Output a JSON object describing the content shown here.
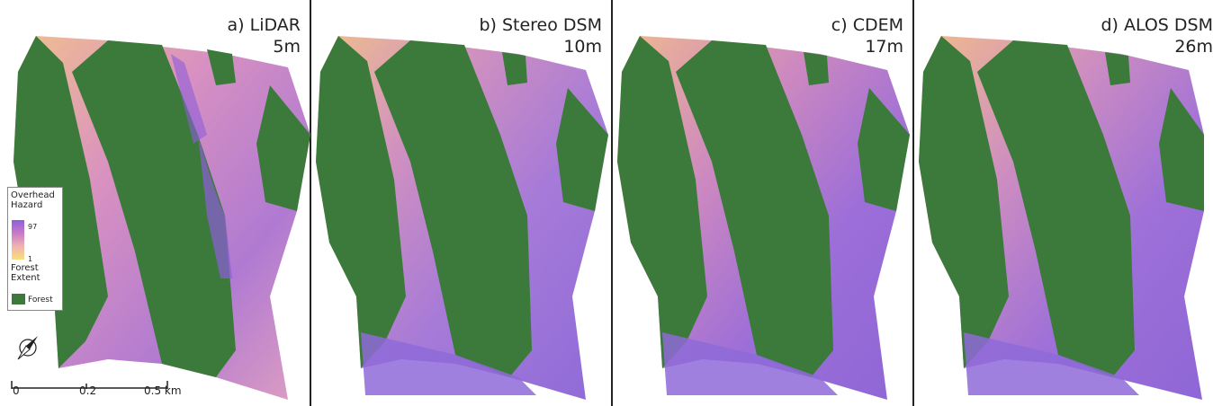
{
  "panels": [
    {
      "letter": "a) LiDAR",
      "resolution": "5m"
    },
    {
      "letter": "b) Stereo DSM",
      "resolution": "10m"
    },
    {
      "letter": "c) CDEM",
      "resolution": "17m"
    },
    {
      "letter": "d) ALOS DSM",
      "resolution": "26m"
    }
  ],
  "legend": {
    "hazard_title": "Overhead Hazard",
    "max": "97",
    "min": "1",
    "forest_title": "Forest Extent",
    "forest_item": "Forest"
  },
  "scale": {
    "ticks": [
      "0",
      "0.2",
      "0.5 km"
    ]
  },
  "colors": {
    "forest": "#3b7a3a",
    "hazard_high": "#8e5ed8",
    "hazard_mid": "#c87ac8",
    "hazard_low": "#f7e07a",
    "frame": "#222222"
  },
  "icons": [
    "north-arrow-icon"
  ]
}
